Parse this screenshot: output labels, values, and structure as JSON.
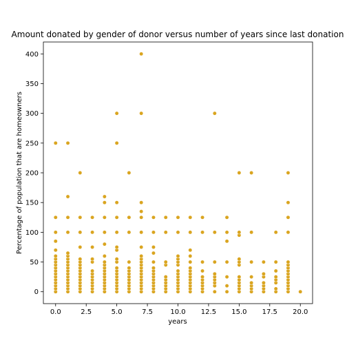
{
  "chart_data": {
    "type": "scatter",
    "title": "Amount donated by gender of donor versus number of years since last donation",
    "xlabel": "years",
    "ylabel": "Percentage of population that are homeowners",
    "xlim": [
      -1,
      21
    ],
    "ylim": [
      -20,
      420
    ],
    "x_ticks": [
      0.0,
      2.5,
      5.0,
      7.5,
      10.0,
      12.5,
      15.0,
      17.5,
      20.0
    ],
    "x_tick_labels": [
      "0.0",
      "2.5",
      "5.0",
      "7.5",
      "10.0",
      "12.5",
      "15.0",
      "17.5",
      "20.0"
    ],
    "y_ticks": [
      0,
      50,
      100,
      150,
      200,
      250,
      300,
      350,
      400
    ],
    "y_tick_labels": [
      "0",
      "50",
      "100",
      "150",
      "200",
      "250",
      "300",
      "350",
      "400"
    ],
    "grid": false,
    "marker_color": "#DAA520",
    "points": [
      {
        "x": 0,
        "y": 0
      },
      {
        "x": 0,
        "y": 5
      },
      {
        "x": 0,
        "y": 10
      },
      {
        "x": 0,
        "y": 15
      },
      {
        "x": 0,
        "y": 20
      },
      {
        "x": 0,
        "y": 25
      },
      {
        "x": 0,
        "y": 30
      },
      {
        "x": 0,
        "y": 35
      },
      {
        "x": 0,
        "y": 40
      },
      {
        "x": 0,
        "y": 45
      },
      {
        "x": 0,
        "y": 50
      },
      {
        "x": 0,
        "y": 55
      },
      {
        "x": 0,
        "y": 60
      },
      {
        "x": 0,
        "y": 70
      },
      {
        "x": 0,
        "y": 85
      },
      {
        "x": 0,
        "y": 100
      },
      {
        "x": 0,
        "y": 125
      },
      {
        "x": 0,
        "y": 250
      },
      {
        "x": 1,
        "y": 0
      },
      {
        "x": 1,
        "y": 5
      },
      {
        "x": 1,
        "y": 10
      },
      {
        "x": 1,
        "y": 15
      },
      {
        "x": 1,
        "y": 20
      },
      {
        "x": 1,
        "y": 25
      },
      {
        "x": 1,
        "y": 30
      },
      {
        "x": 1,
        "y": 35
      },
      {
        "x": 1,
        "y": 40
      },
      {
        "x": 1,
        "y": 45
      },
      {
        "x": 1,
        "y": 50
      },
      {
        "x": 1,
        "y": 55
      },
      {
        "x": 1,
        "y": 60
      },
      {
        "x": 1,
        "y": 65
      },
      {
        "x": 1,
        "y": 100
      },
      {
        "x": 1,
        "y": 125
      },
      {
        "x": 1,
        "y": 160
      },
      {
        "x": 1,
        "y": 250
      },
      {
        "x": 2,
        "y": 0
      },
      {
        "x": 2,
        "y": 5
      },
      {
        "x": 2,
        "y": 10
      },
      {
        "x": 2,
        "y": 15
      },
      {
        "x": 2,
        "y": 20
      },
      {
        "x": 2,
        "y": 25
      },
      {
        "x": 2,
        "y": 30
      },
      {
        "x": 2,
        "y": 35
      },
      {
        "x": 2,
        "y": 40
      },
      {
        "x": 2,
        "y": 45
      },
      {
        "x": 2,
        "y": 50
      },
      {
        "x": 2,
        "y": 55
      },
      {
        "x": 2,
        "y": 75
      },
      {
        "x": 2,
        "y": 100
      },
      {
        "x": 2,
        "y": 125
      },
      {
        "x": 2,
        "y": 200
      },
      {
        "x": 3,
        "y": 0
      },
      {
        "x": 3,
        "y": 5
      },
      {
        "x": 3,
        "y": 10
      },
      {
        "x": 3,
        "y": 15
      },
      {
        "x": 3,
        "y": 20
      },
      {
        "x": 3,
        "y": 25
      },
      {
        "x": 3,
        "y": 30
      },
      {
        "x": 3,
        "y": 35
      },
      {
        "x": 3,
        "y": 50
      },
      {
        "x": 3,
        "y": 55
      },
      {
        "x": 3,
        "y": 75
      },
      {
        "x": 3,
        "y": 100
      },
      {
        "x": 3,
        "y": 125
      },
      {
        "x": 4,
        "y": 0
      },
      {
        "x": 4,
        "y": 5
      },
      {
        "x": 4,
        "y": 10
      },
      {
        "x": 4,
        "y": 15
      },
      {
        "x": 4,
        "y": 20
      },
      {
        "x": 4,
        "y": 25
      },
      {
        "x": 4,
        "y": 30
      },
      {
        "x": 4,
        "y": 35
      },
      {
        "x": 4,
        "y": 40
      },
      {
        "x": 4,
        "y": 45
      },
      {
        "x": 4,
        "y": 50
      },
      {
        "x": 4,
        "y": 60
      },
      {
        "x": 4,
        "y": 80
      },
      {
        "x": 4,
        "y": 100
      },
      {
        "x": 4,
        "y": 125
      },
      {
        "x": 4,
        "y": 150
      },
      {
        "x": 4,
        "y": 160
      },
      {
        "x": 5,
        "y": 0
      },
      {
        "x": 5,
        "y": 5
      },
      {
        "x": 5,
        "y": 10
      },
      {
        "x": 5,
        "y": 15
      },
      {
        "x": 5,
        "y": 20
      },
      {
        "x": 5,
        "y": 25
      },
      {
        "x": 5,
        "y": 30
      },
      {
        "x": 5,
        "y": 35
      },
      {
        "x": 5,
        "y": 40
      },
      {
        "x": 5,
        "y": 50
      },
      {
        "x": 5,
        "y": 55
      },
      {
        "x": 5,
        "y": 70
      },
      {
        "x": 5,
        "y": 75
      },
      {
        "x": 5,
        "y": 100
      },
      {
        "x": 5,
        "y": 125
      },
      {
        "x": 5,
        "y": 150
      },
      {
        "x": 5,
        "y": 250
      },
      {
        "x": 5,
        "y": 300
      },
      {
        "x": 6,
        "y": 0
      },
      {
        "x": 6,
        "y": 5
      },
      {
        "x": 6,
        "y": 10
      },
      {
        "x": 6,
        "y": 15
      },
      {
        "x": 6,
        "y": 20
      },
      {
        "x": 6,
        "y": 25
      },
      {
        "x": 6,
        "y": 30
      },
      {
        "x": 6,
        "y": 35
      },
      {
        "x": 6,
        "y": 40
      },
      {
        "x": 6,
        "y": 50
      },
      {
        "x": 6,
        "y": 100
      },
      {
        "x": 6,
        "y": 125
      },
      {
        "x": 6,
        "y": 200
      },
      {
        "x": 7,
        "y": 0
      },
      {
        "x": 7,
        "y": 5
      },
      {
        "x": 7,
        "y": 10
      },
      {
        "x": 7,
        "y": 15
      },
      {
        "x": 7,
        "y": 20
      },
      {
        "x": 7,
        "y": 25
      },
      {
        "x": 7,
        "y": 30
      },
      {
        "x": 7,
        "y": 35
      },
      {
        "x": 7,
        "y": 40
      },
      {
        "x": 7,
        "y": 45
      },
      {
        "x": 7,
        "y": 50
      },
      {
        "x": 7,
        "y": 55
      },
      {
        "x": 7,
        "y": 60
      },
      {
        "x": 7,
        "y": 75
      },
      {
        "x": 7,
        "y": 100
      },
      {
        "x": 7,
        "y": 125
      },
      {
        "x": 7,
        "y": 135
      },
      {
        "x": 7,
        "y": 150
      },
      {
        "x": 7,
        "y": 300
      },
      {
        "x": 7,
        "y": 400
      },
      {
        "x": 8,
        "y": 0
      },
      {
        "x": 8,
        "y": 5
      },
      {
        "x": 8,
        "y": 10
      },
      {
        "x": 8,
        "y": 15
      },
      {
        "x": 8,
        "y": 20
      },
      {
        "x": 8,
        "y": 25
      },
      {
        "x": 8,
        "y": 30
      },
      {
        "x": 8,
        "y": 35
      },
      {
        "x": 8,
        "y": 40
      },
      {
        "x": 8,
        "y": 50
      },
      {
        "x": 8,
        "y": 65
      },
      {
        "x": 8,
        "y": 75
      },
      {
        "x": 8,
        "y": 100
      },
      {
        "x": 8,
        "y": 125
      },
      {
        "x": 9,
        "y": 0
      },
      {
        "x": 9,
        "y": 5
      },
      {
        "x": 9,
        "y": 10
      },
      {
        "x": 9,
        "y": 15
      },
      {
        "x": 9,
        "y": 20
      },
      {
        "x": 9,
        "y": 25
      },
      {
        "x": 9,
        "y": 45
      },
      {
        "x": 9,
        "y": 50
      },
      {
        "x": 9,
        "y": 100
      },
      {
        "x": 9,
        "y": 125
      },
      {
        "x": 10,
        "y": 0
      },
      {
        "x": 10,
        "y": 5
      },
      {
        "x": 10,
        "y": 10
      },
      {
        "x": 10,
        "y": 15
      },
      {
        "x": 10,
        "y": 20
      },
      {
        "x": 10,
        "y": 25
      },
      {
        "x": 10,
        "y": 30
      },
      {
        "x": 10,
        "y": 35
      },
      {
        "x": 10,
        "y": 45
      },
      {
        "x": 10,
        "y": 50
      },
      {
        "x": 10,
        "y": 55
      },
      {
        "x": 10,
        "y": 60
      },
      {
        "x": 10,
        "y": 100
      },
      {
        "x": 10,
        "y": 125
      },
      {
        "x": 11,
        "y": 0
      },
      {
        "x": 11,
        "y": 5
      },
      {
        "x": 11,
        "y": 10
      },
      {
        "x": 11,
        "y": 15
      },
      {
        "x": 11,
        "y": 20
      },
      {
        "x": 11,
        "y": 25
      },
      {
        "x": 11,
        "y": 30
      },
      {
        "x": 11,
        "y": 35
      },
      {
        "x": 11,
        "y": 40
      },
      {
        "x": 11,
        "y": 50
      },
      {
        "x": 11,
        "y": 60
      },
      {
        "x": 11,
        "y": 70
      },
      {
        "x": 11,
        "y": 100
      },
      {
        "x": 11,
        "y": 125
      },
      {
        "x": 12,
        "y": 0
      },
      {
        "x": 12,
        "y": 5
      },
      {
        "x": 12,
        "y": 10
      },
      {
        "x": 12,
        "y": 15
      },
      {
        "x": 12,
        "y": 20
      },
      {
        "x": 12,
        "y": 25
      },
      {
        "x": 12,
        "y": 35
      },
      {
        "x": 12,
        "y": 50
      },
      {
        "x": 12,
        "y": 100
      },
      {
        "x": 12,
        "y": 125
      },
      {
        "x": 13,
        "y": 0
      },
      {
        "x": 13,
        "y": 10
      },
      {
        "x": 13,
        "y": 15
      },
      {
        "x": 13,
        "y": 20
      },
      {
        "x": 13,
        "y": 25
      },
      {
        "x": 13,
        "y": 30
      },
      {
        "x": 13,
        "y": 50
      },
      {
        "x": 13,
        "y": 100
      },
      {
        "x": 13,
        "y": 300
      },
      {
        "x": 14,
        "y": 0
      },
      {
        "x": 14,
        "y": 10
      },
      {
        "x": 14,
        "y": 25
      },
      {
        "x": 14,
        "y": 50
      },
      {
        "x": 14,
        "y": 85
      },
      {
        "x": 14,
        "y": 100
      },
      {
        "x": 14,
        "y": 125
      },
      {
        "x": 15,
        "y": 0
      },
      {
        "x": 15,
        "y": 5
      },
      {
        "x": 15,
        "y": 10
      },
      {
        "x": 15,
        "y": 15
      },
      {
        "x": 15,
        "y": 20
      },
      {
        "x": 15,
        "y": 25
      },
      {
        "x": 15,
        "y": 45
      },
      {
        "x": 15,
        "y": 50
      },
      {
        "x": 15,
        "y": 55
      },
      {
        "x": 15,
        "y": 95
      },
      {
        "x": 15,
        "y": 100
      },
      {
        "x": 15,
        "y": 200
      },
      {
        "x": 16,
        "y": 0
      },
      {
        "x": 16,
        "y": 5
      },
      {
        "x": 16,
        "y": 10
      },
      {
        "x": 16,
        "y": 15
      },
      {
        "x": 16,
        "y": 25
      },
      {
        "x": 16,
        "y": 50
      },
      {
        "x": 16,
        "y": 100
      },
      {
        "x": 16,
        "y": 200
      },
      {
        "x": 17,
        "y": 0
      },
      {
        "x": 17,
        "y": 5
      },
      {
        "x": 17,
        "y": 10
      },
      {
        "x": 17,
        "y": 15
      },
      {
        "x": 17,
        "y": 25
      },
      {
        "x": 17,
        "y": 30
      },
      {
        "x": 17,
        "y": 50
      },
      {
        "x": 18,
        "y": 0
      },
      {
        "x": 18,
        "y": 5
      },
      {
        "x": 18,
        "y": 15
      },
      {
        "x": 18,
        "y": 20
      },
      {
        "x": 18,
        "y": 25
      },
      {
        "x": 18,
        "y": 35
      },
      {
        "x": 18,
        "y": 50
      },
      {
        "x": 18,
        "y": 100
      },
      {
        "x": 19,
        "y": 0
      },
      {
        "x": 19,
        "y": 5
      },
      {
        "x": 19,
        "y": 10
      },
      {
        "x": 19,
        "y": 15
      },
      {
        "x": 19,
        "y": 20
      },
      {
        "x": 19,
        "y": 25
      },
      {
        "x": 19,
        "y": 30
      },
      {
        "x": 19,
        "y": 35
      },
      {
        "x": 19,
        "y": 40
      },
      {
        "x": 19,
        "y": 45
      },
      {
        "x": 19,
        "y": 50
      },
      {
        "x": 19,
        "y": 100
      },
      {
        "x": 19,
        "y": 125
      },
      {
        "x": 19,
        "y": 150
      },
      {
        "x": 19,
        "y": 200
      },
      {
        "x": 20,
        "y": 0
      }
    ]
  }
}
